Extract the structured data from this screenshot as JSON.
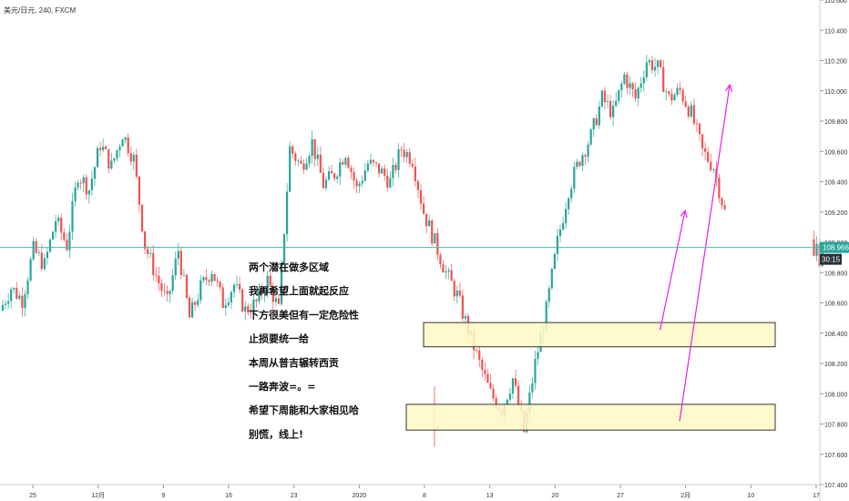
{
  "symbol_title": "美元/日元, 240, FXCM",
  "colors": {
    "up": "#26a69a",
    "down": "#ef5350",
    "zone_fill": "#fff9c4",
    "zone_stroke": "#333333",
    "arrow": "#e91ee6",
    "price_line": "#4db6ac"
  },
  "chart_data": {
    "type": "candlestick",
    "title": "美元/日元, 240, FXCM",
    "ylim": [
      107.4,
      110.6
    ],
    "y_ticks": [
      107.4,
      107.6,
      107.8,
      108.0,
      108.2,
      108.4,
      108.6,
      108.8,
      109.0,
      109.2,
      109.4,
      109.6,
      109.8,
      110.0,
      110.2,
      110.4,
      110.6
    ],
    "y_tick_labels": [
      "107.400",
      "107.600",
      "107.800",
      "108.000",
      "108.200",
      "108.400",
      "108.600",
      "108.800",
      "109.000",
      "109.200",
      "109.400",
      "109.600",
      "109.800",
      "110.000",
      "110.200",
      "110.400",
      "110.600"
    ],
    "x_tick_labels": [
      "25",
      "12月",
      "9",
      "16",
      "23",
      "2020",
      "8",
      "13",
      "20",
      "27",
      "2月",
      "10",
      "17"
    ],
    "current_price": "108.966",
    "countdown": "30:15",
    "path": [
      108.55,
      108.7,
      108.62,
      108.95,
      108.85,
      109.15,
      108.98,
      109.45,
      109.35,
      109.65,
      109.5,
      109.72,
      109.55,
      108.98,
      108.78,
      108.6,
      108.95,
      108.5,
      108.7,
      108.82,
      108.6,
      108.72,
      108.55,
      108.6,
      108.75,
      108.55,
      109.62,
      109.5,
      109.66,
      109.38,
      109.45,
      109.6,
      109.35,
      109.52,
      109.48,
      109.4,
      109.62,
      109.55,
      109.2,
      109.0,
      108.8,
      108.65,
      108.42,
      108.2,
      108.0,
      107.9,
      108.1,
      107.75,
      108.2,
      108.55,
      109.0,
      109.35,
      109.55,
      109.7,
      109.95,
      109.85,
      110.1,
      109.95,
      110.2,
      110.15,
      109.95,
      110.0,
      109.85,
      109.6,
      109.5,
      109.2
    ],
    "recent_path": [
      109.02,
      108.9,
      108.98,
      108.88,
      108.96
    ],
    "zones": [
      {
        "name": "upper",
        "y_top": 108.47,
        "y_bottom": 108.31
      },
      {
        "name": "lower",
        "y_top": 107.93,
        "y_bottom": 107.76
      }
    ],
    "arrows": [
      {
        "from": {
          "bar": 110,
          "y": 108.42
        },
        "to": {
          "bar": 119,
          "y": 109.21
        }
      },
      {
        "from": {
          "bar": 117,
          "y": 107.82
        },
        "to": {
          "bar": 135,
          "y": 110.04
        }
      }
    ]
  },
  "annotations": [
    "两个潜在做多区域",
    "我再希望上面就起反应",
    "下方很美但有一定危险性",
    "止损要统一给",
    "本周从普吉辗转西贡",
    "一路奔波=。=",
    "希望下周能和大家相见哈",
    "别慌，线上!"
  ]
}
